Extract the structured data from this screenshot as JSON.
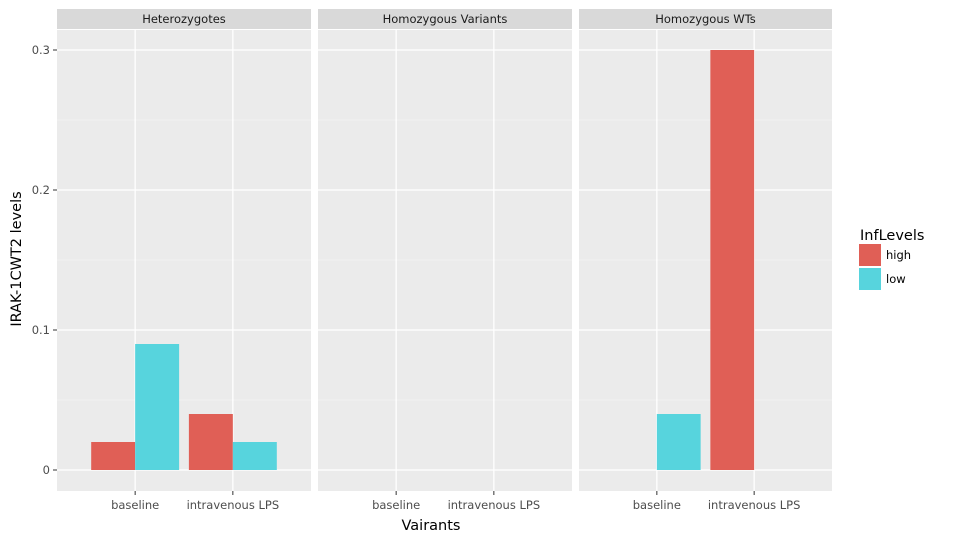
{
  "chart_data": {
    "type": "bar",
    "layout": "faceted",
    "facets": [
      "Heterozygotes",
      "Homozygous Variants",
      "Homozygous WTs"
    ],
    "categories": [
      "baseline",
      "intravenous LPS"
    ],
    "xlabel": "Vairants",
    "ylabel": "IRAK-1CWT2 levels",
    "ylim": [
      0,
      0.3
    ],
    "yticks": [
      "0",
      "0.1",
      "0.2",
      "0.3"
    ],
    "yticks_values": [
      0,
      0.1,
      0.2,
      0.3
    ],
    "grid": true,
    "legend": {
      "title": "InfLevels",
      "position": "right",
      "entries": [
        {
          "label": "high",
          "color": "#e05f56"
        },
        {
          "label": "low",
          "color": "#57d4dd"
        }
      ]
    },
    "series": [
      {
        "name": "high",
        "color": "#e05f56",
        "values": {
          "Heterozygotes": [
            0.02,
            0.04
          ],
          "Homozygous Variants": [
            null,
            null
          ],
          "Homozygous WTs": [
            null,
            0.3
          ]
        }
      },
      {
        "name": "low",
        "color": "#57d4dd",
        "values": {
          "Heterozygotes": [
            0.09,
            0.02
          ],
          "Homozygous Variants": [
            null,
            null
          ],
          "Homozygous WTs": [
            0.04,
            null
          ]
        }
      }
    ]
  },
  "colors": {
    "panel_background": "#ebebeb",
    "strip_background": "#d9d9d9",
    "grid_major": "#ffffff",
    "grid_minor": "#f4f4f4"
  }
}
